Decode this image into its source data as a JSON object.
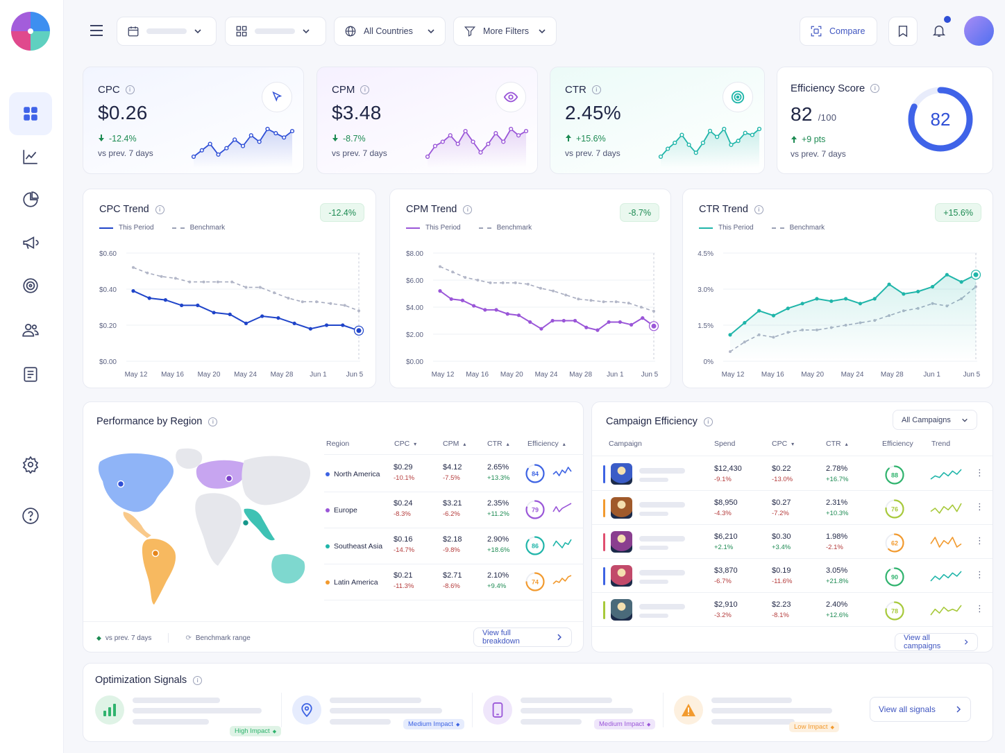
{
  "topbar": {
    "countries_label": "All Countries",
    "filters_label": "More Filters",
    "compare_label": "Compare"
  },
  "kpis": [
    {
      "label": "CPC",
      "value": "$0.26",
      "delta": "-12.4%",
      "delta_dir": "down",
      "sub": "vs prev. 7 days",
      "color": "#2f4fd6",
      "icon": "cursor-icon",
      "spark": [
        3,
        6,
        9,
        4,
        7,
        11,
        8,
        13,
        10,
        16,
        14,
        12,
        15
      ]
    },
    {
      "label": "CPM",
      "value": "$3.48",
      "delta": "-8.7%",
      "delta_dir": "down",
      "sub": "vs prev. 7 days",
      "color": "#9a56d8",
      "icon": "eye-icon",
      "spark": [
        3,
        8,
        10,
        13,
        9,
        15,
        10,
        5,
        9,
        14,
        10,
        16,
        13,
        15
      ]
    },
    {
      "label": "CTR",
      "value": "2.45%",
      "delta": "+15.6%",
      "delta_dir": "up",
      "sub": "vs prev. 7 days",
      "color": "#1fb5a9",
      "icon": "target-icon",
      "spark": [
        3,
        7,
        10,
        14,
        9,
        5,
        10,
        16,
        13,
        17,
        9,
        11,
        15,
        14,
        17
      ]
    }
  ],
  "efficiency": {
    "label": "Efficiency Score",
    "value": "82",
    "denom": "/100",
    "delta": "+9 pts",
    "sub": "vs prev. 7 days",
    "score": 82,
    "color": "#3f63e8"
  },
  "trends": [
    {
      "title": "CPC Trend",
      "badge": "-12.4%",
      "color": "#1f44c9",
      "y_ticks": [
        "$0.60",
        "$0.40",
        "$0.20",
        "$0.00"
      ],
      "ylim": [
        0,
        0.6
      ],
      "x_ticks": [
        "May 12",
        "May 16",
        "May 20",
        "May 24",
        "May 28",
        "Jun 1",
        "Jun 5"
      ],
      "this_period": [
        0.39,
        0.35,
        0.34,
        0.31,
        0.31,
        0.27,
        0.26,
        0.21,
        0.25,
        0.24,
        0.21,
        0.18,
        0.2,
        0.2,
        0.17
      ],
      "benchmark": [
        0.52,
        0.49,
        0.47,
        0.46,
        0.44,
        0.44,
        0.44,
        0.44,
        0.41,
        0.41,
        0.38,
        0.35,
        0.33,
        0.33,
        0.32,
        0.31,
        0.28
      ]
    },
    {
      "title": "CPM Trend",
      "badge": "-8.7%",
      "color": "#9a56d8",
      "y_ticks": [
        "$8.00",
        "$6.00",
        "$4.00",
        "$2.00",
        "$0.00"
      ],
      "ylim": [
        0,
        8
      ],
      "x_ticks": [
        "May 12",
        "May 16",
        "May 20",
        "May 24",
        "May 28",
        "Jun 1",
        "Jun 5"
      ],
      "this_period": [
        5.2,
        4.6,
        4.5,
        4.1,
        3.8,
        3.8,
        3.5,
        3.4,
        2.9,
        2.4,
        3.0,
        3.0,
        3.0,
        2.5,
        2.3,
        2.9,
        2.9,
        2.7,
        3.2,
        2.6
      ],
      "benchmark": [
        7.0,
        6.6,
        6.2,
        6.0,
        5.8,
        5.8,
        5.8,
        5.7,
        5.4,
        5.2,
        4.9,
        4.6,
        4.5,
        4.4,
        4.4,
        4.3,
        4.0,
        3.7
      ]
    },
    {
      "title": "CTR Trend",
      "badge": "+15.6%",
      "color": "#1fb5a9",
      "y_ticks": [
        "4.5%",
        "3.0%",
        "1.5%",
        "0%"
      ],
      "ylim": [
        0,
        4.5
      ],
      "x_ticks": [
        "May 12",
        "May 16",
        "May 20",
        "May 24",
        "May 28",
        "Jun 1",
        "Jun 5"
      ],
      "this_period": [
        1.1,
        1.6,
        2.1,
        1.9,
        2.2,
        2.4,
        2.6,
        2.5,
        2.6,
        2.4,
        2.6,
        3.2,
        2.8,
        2.9,
        3.1,
        3.6,
        3.3,
        3.6
      ],
      "benchmark": [
        0.4,
        0.8,
        1.1,
        1.0,
        1.2,
        1.3,
        1.3,
        1.4,
        1.5,
        1.6,
        1.7,
        1.9,
        2.1,
        2.2,
        2.4,
        2.3,
        2.6,
        3.1
      ]
    }
  ],
  "trend_legend": {
    "this_period": "This Period",
    "benchmark": "Benchmark"
  },
  "region": {
    "title": "Performance by Region",
    "headers": {
      "region": "Region",
      "cpc": "CPC",
      "cpm": "CPM",
      "ctr": "CTR",
      "efficiency": "Efficiency"
    },
    "rows": [
      {
        "name": "North America",
        "color": "#3d63e3",
        "cpc": "$0.29",
        "cpc_d": "-10.1%",
        "cpm": "$4.12",
        "cpm_d": "-7.5%",
        "ctr": "2.65%",
        "ctr_d": "+13.3%",
        "eff": "84",
        "eff_v": 84,
        "spark": [
          4,
          6,
          3,
          7,
          5,
          9,
          6
        ]
      },
      {
        "name": "Europe",
        "color": "#9a56d8",
        "cpc": "$0.24",
        "cpc_d": "-8.3%",
        "cpm": "$3.21",
        "cpm_d": "-6.2%",
        "ctr": "2.35%",
        "ctr_d": "+11.2%",
        "eff": "79",
        "eff_v": 79,
        "spark": [
          4,
          7,
          4,
          6,
          7,
          8,
          9
        ]
      },
      {
        "name": "Southeast Asia",
        "color": "#1fb5a9",
        "cpc": "$0.16",
        "cpc_d": "-14.7%",
        "cpm": "$2.18",
        "cpm_d": "-9.8%",
        "ctr": "2.90%",
        "ctr_d": "+18.6%",
        "eff": "86",
        "eff_v": 86,
        "spark": [
          4,
          7,
          5,
          3,
          6,
          5,
          8
        ]
      },
      {
        "name": "Latin America",
        "color": "#f29a2e",
        "cpc": "$0.21",
        "cpc_d": "-11.3%",
        "cpm": "$2.71",
        "cpm_d": "-8.6%",
        "ctr": "2.10%",
        "ctr_d": "+9.4%",
        "eff": "74",
        "eff_v": 74,
        "spark": [
          3,
          5,
          4,
          7,
          5,
          8,
          9
        ]
      }
    ],
    "footer_delta": "vs prev. 7 days",
    "footer_bench": "Benchmark range",
    "view_btn": "View full breakdown"
  },
  "campaigns": {
    "title": "Campaign Efficiency",
    "filter": "All Campaigns",
    "headers": {
      "campaign": "Campaign",
      "spend": "Spend",
      "cpc": "CPC",
      "ctr": "CTR",
      "efficiency": "Efficiency",
      "trend": "Trend"
    },
    "rows": [
      {
        "bar": "#3d63e3",
        "spend": "$12,430",
        "spend_d": "-9.1%",
        "cpc": "$0.22",
        "cpc_d": "-13.0%",
        "ctr": "2.78%",
        "ctr_d": "+16.7%",
        "eff": "88",
        "eff_v": 88,
        "ring": "#2fb36d",
        "spark": [
          3,
          5,
          4,
          7,
          5,
          8,
          6,
          9
        ],
        "spark_color": "#1fb5a9",
        "thumb": "#3a5cc7"
      },
      {
        "bar": "#f29a2e",
        "spend": "$8,950",
        "spend_d": "-4.3%",
        "cpc": "$0.27",
        "cpc_d": "-7.2%",
        "ctr": "2.31%",
        "ctr_d": "+10.3%",
        "eff": "76",
        "eff_v": 76,
        "ring": "#a7c93a",
        "spark": [
          4,
          6,
          3,
          7,
          5,
          8,
          4,
          9
        ],
        "spark_color": "#a7c93a",
        "thumb": "#a05a2b"
      },
      {
        "bar": "#e04f6f",
        "spend": "$6,210",
        "spend_d": "+2.1%",
        "cpc": "$0.30",
        "cpc_d": "+3.4%",
        "ctr": "1.98%",
        "ctr_d": "-2.1%",
        "eff": "62",
        "eff_v": 62,
        "ring": "#f29a2e",
        "spark": [
          5,
          7,
          4,
          6,
          5,
          7,
          4,
          5
        ],
        "spark_color": "#f29a2e",
        "thumb": "#8a3f8f"
      },
      {
        "bar": "#3d63e3",
        "spend": "$3,870",
        "spend_d": "-6.7%",
        "cpc": "$0.19",
        "cpc_d": "-11.6%",
        "ctr": "3.05%",
        "ctr_d": "+21.8%",
        "eff": "90",
        "eff_v": 90,
        "ring": "#2fb36d",
        "spark": [
          3,
          6,
          4,
          7,
          5,
          8,
          6,
          9
        ],
        "spark_color": "#1fb5a9",
        "thumb": "#c24a6a"
      },
      {
        "bar": "#a7c93a",
        "spend": "$2,910",
        "spend_d": "-3.2%",
        "cpc": "$2.23",
        "cpc_d": "-8.1%",
        "ctr": "2.40%",
        "ctr_d": "+12.6%",
        "eff": "78",
        "eff_v": 78,
        "ring": "#a7c93a",
        "spark": [
          3,
          6,
          4,
          7,
          5,
          6,
          5,
          8
        ],
        "spark_color": "#a7c93a",
        "thumb": "#4a6a7a"
      }
    ],
    "view_btn": "View all campaigns"
  },
  "signals": {
    "title": "Optimization Signals",
    "items": [
      {
        "icon": "bar-chart-icon",
        "impact": "High Impact",
        "color": "#2fb36d",
        "bg": "#dff3e6"
      },
      {
        "icon": "location-pin-icon",
        "impact": "Medium Impact",
        "color": "#3d63e3",
        "bg": "#e6ecfd"
      },
      {
        "icon": "mobile-icon",
        "impact": "Medium Impact",
        "color": "#9a56d8",
        "bg": "#efe6fb"
      },
      {
        "icon": "warning-icon",
        "impact": "Low Impact",
        "color": "#f29a2e",
        "bg": "#fdf0df"
      }
    ],
    "view_btn": "View all signals"
  }
}
